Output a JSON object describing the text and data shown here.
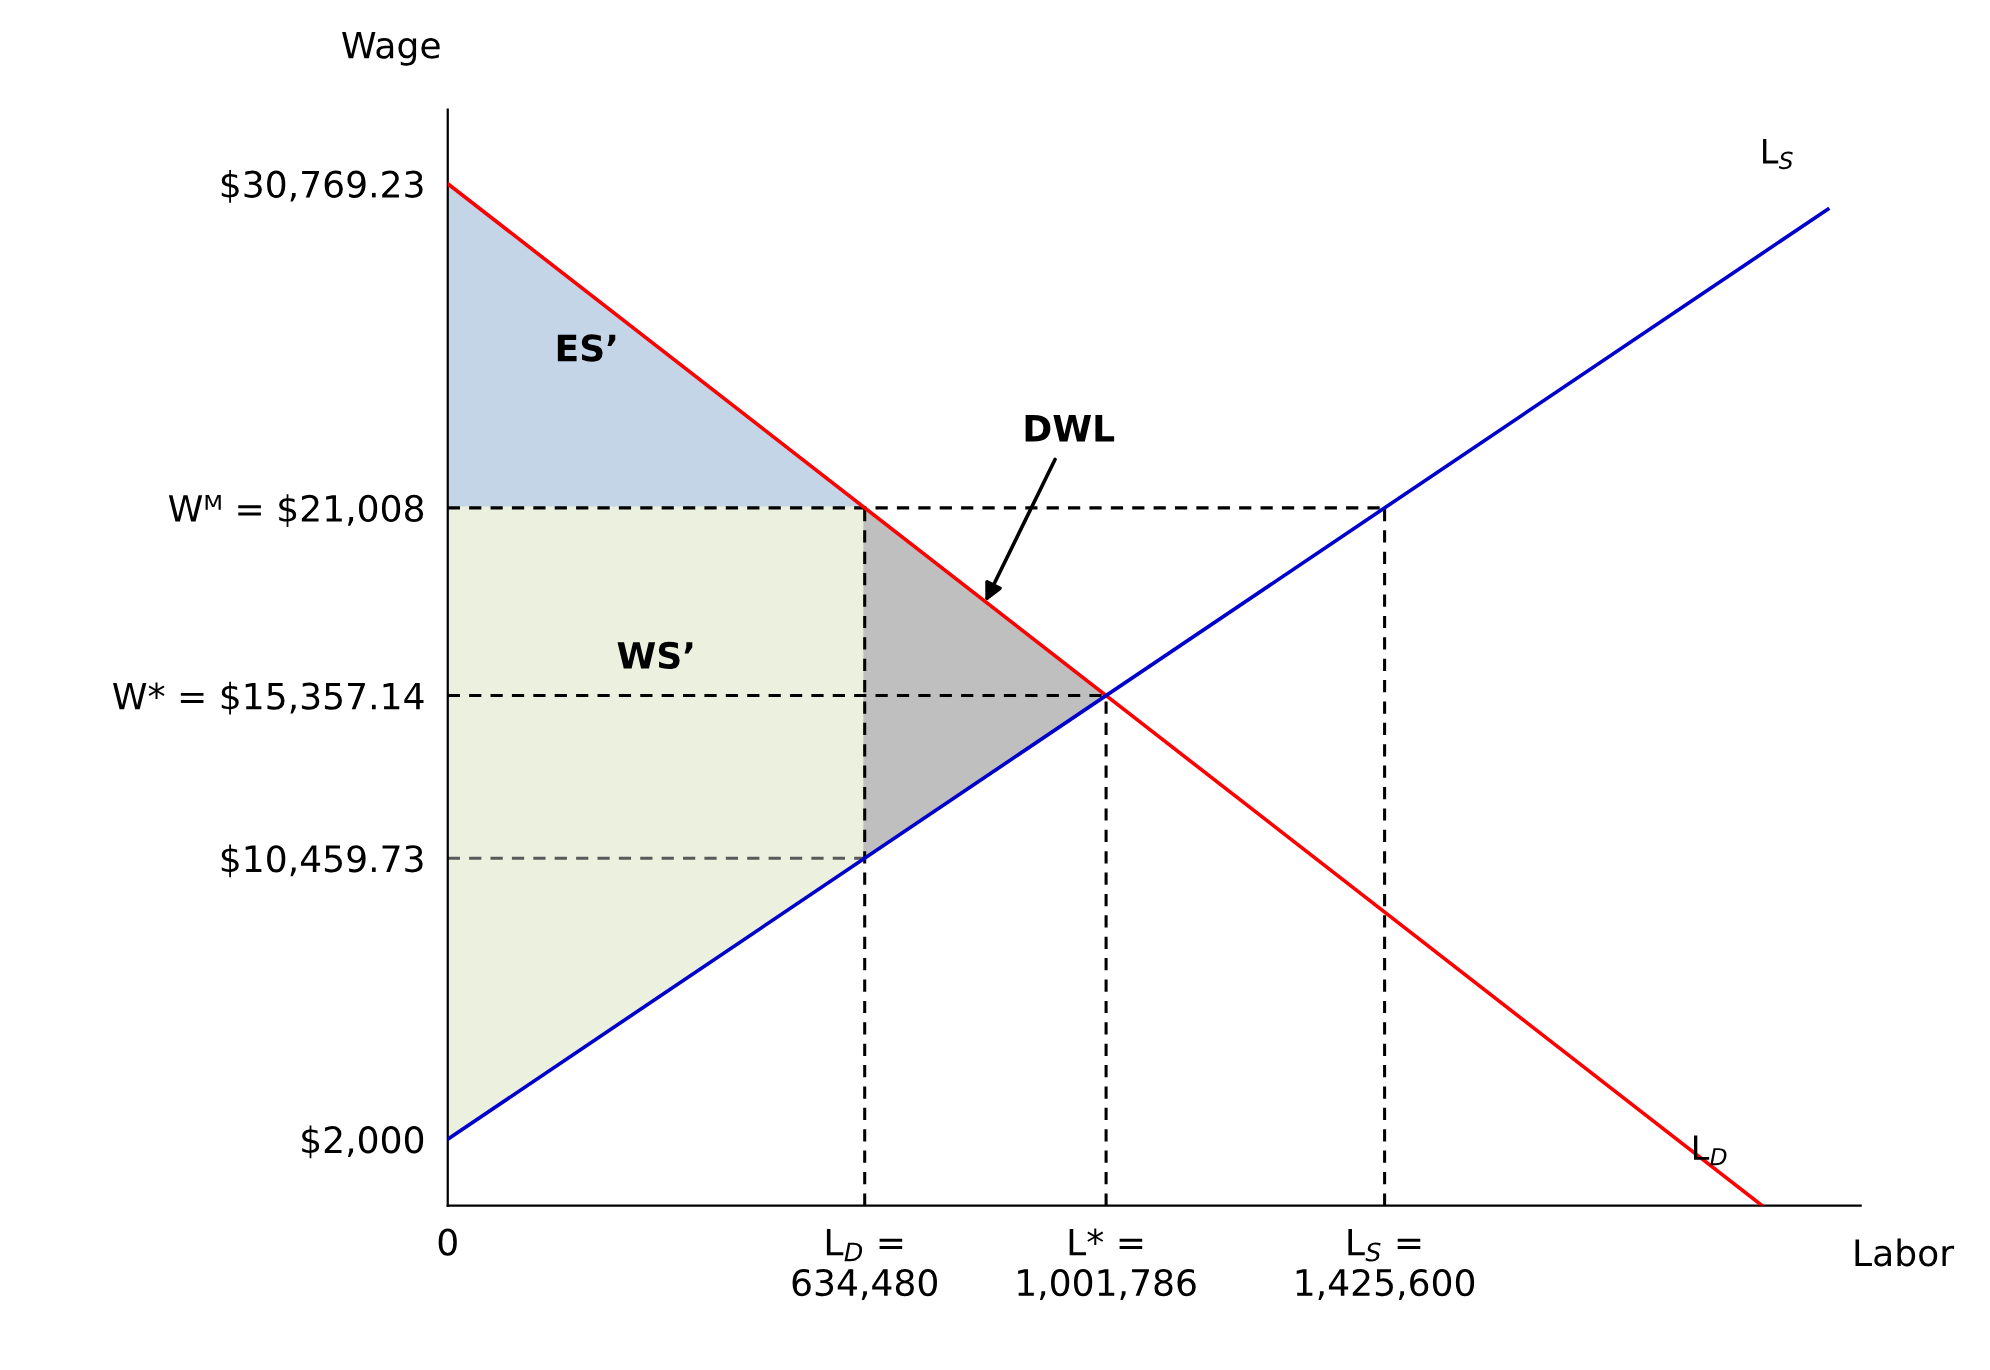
{
  "chart_data": {
    "type": "line",
    "xlabel": "Labor",
    "ylabel": "Wage",
    "xlim": [
      0,
      2150000
    ],
    "ylim": [
      0,
      33000
    ],
    "xticks": [
      {
        "value": 0,
        "label": "0"
      },
      {
        "value": 634480,
        "label": "L$_{D}$ =\n634,480"
      },
      {
        "value": 1001786,
        "label": "L* =\n1,001,786"
      },
      {
        "value": 1425600,
        "label": "L$_{S}$ =\n1,425,600"
      }
    ],
    "yticks": [
      {
        "value": 2000,
        "label": "$2,000"
      },
      {
        "value": 10459.73,
        "label": "$10,459.73"
      },
      {
        "value": 15357.14,
        "label": "W* = $15,357.14"
      },
      {
        "value": 21008,
        "label": "Wᴹ = $21,008"
      },
      {
        "value": 30769.23,
        "label": "$30,769.23"
      }
    ],
    "grid": false,
    "legend": false,
    "series": [
      {
        "type": "area",
        "name": "ES’",
        "color": "#c5d5e8",
        "x": [
          0,
          634480,
          0
        ],
        "values": [
          30769.23,
          21008,
          21008
        ]
      },
      {
        "type": "area",
        "name": "WS’",
        "color": "#ebf1de",
        "x": [
          0,
          634480,
          634480,
          0
        ],
        "values": [
          21008,
          21008,
          10459.73,
          2000
        ]
      },
      {
        "type": "area",
        "color": "#bfbfbf",
        "x": [
          634480,
          1001786,
          634480
        ],
        "values": [
          21008,
          15357.14,
          10459.73
        ]
      },
      {
        "line_style": "dashed",
        "color": "#000000",
        "x": [
          0,
          1425600
        ],
        "values": [
          21008,
          21008
        ]
      },
      {
        "line_style": "dashed",
        "color": "#000000",
        "x": [
          0,
          1001786
        ],
        "values": [
          15357.14,
          15357.14
        ]
      },
      {
        "type": "line",
        "line_style": "dashed",
        "color": "#595959",
        "x": [
          0,
          634480
        ],
        "values": [
          10459.73,
          10459.73
        ]
      },
      {
        "type": "line",
        "line_style": "dashed",
        "color": "#000000",
        "x": [
          634480,
          634480
        ],
        "values": [
          0,
          21008
        ]
      },
      {
        "type": "line",
        "line_style": "dashed",
        "color": "#000000",
        "x": [
          1001786,
          1001786
        ],
        "values": [
          0,
          15357.14
        ]
      },
      {
        "type": "line",
        "line_style": "dashed",
        "color": "#000000",
        "x": [
          1425600,
          1425600
        ],
        "values": [
          0,
          21008
        ]
      },
      {
        "type": "line",
        "name": "L$_{D}$",
        "color": "#ff0000",
        "line_style": "solid",
        "x": [
          0,
          2000000
        ],
        "values": [
          30769.23,
          0
        ]
      },
      {
        "type": "line",
        "name": "L$_{S}$",
        "color": "#0000cc",
        "line_style": "solid",
        "x": [
          0,
          2100000
        ],
        "values": [
          2000,
          30000
        ]
      }
    ],
    "annotations": [
      {
        "text": "DWL",
        "x": 818133,
        "y": 18183
      }
    ]
  }
}
